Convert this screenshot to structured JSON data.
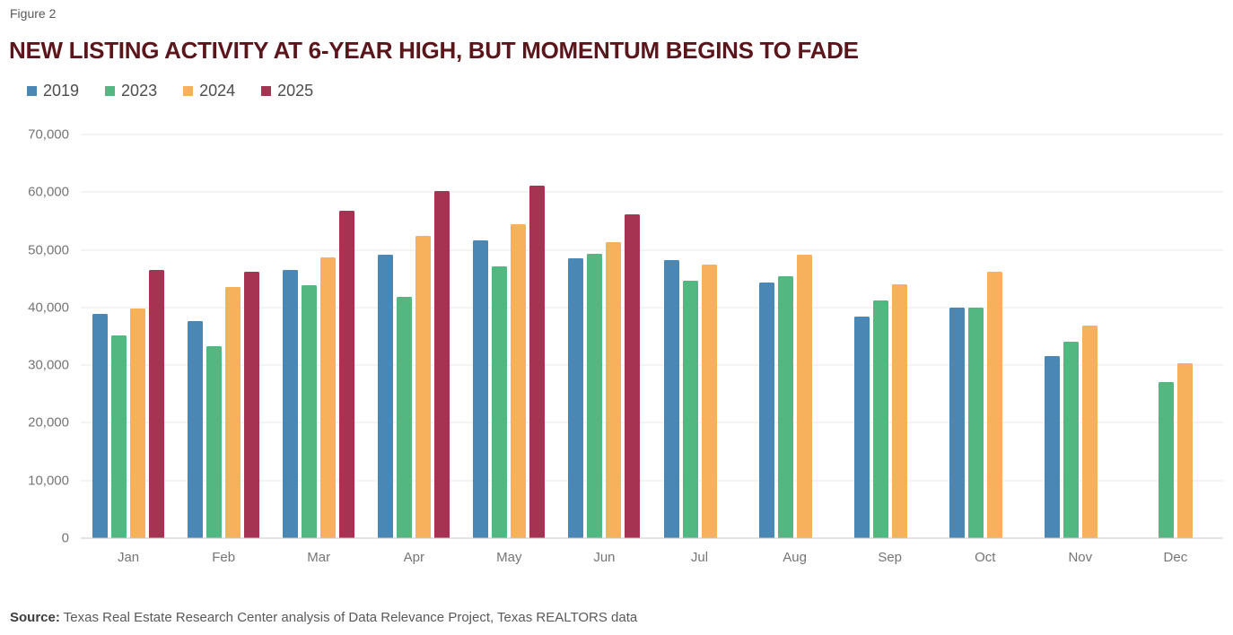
{
  "header": {
    "figure_label": "Figure 2",
    "title": "NEW LISTING ACTIVITY AT 6-YEAR HIGH, BUT MOMENTUM BEGINS TO FADE",
    "title_color": "#5b161c"
  },
  "source": {
    "label": "Source:",
    "text": "Texas Real Estate Research Center analysis of Data Relevance Project, Texas REALTORS data"
  },
  "chart_data": {
    "type": "bar",
    "title": "NEW LISTING ACTIVITY AT 6-YEAR HIGH, BUT MOMENTUM BEGINS TO FADE",
    "categories": [
      "Jan",
      "Feb",
      "Mar",
      "Apr",
      "May",
      "Jun",
      "Jul",
      "Aug",
      "Sep",
      "Oct",
      "Nov",
      "Dec"
    ],
    "series": [
      {
        "name": "2019",
        "color": "#4a87b4",
        "values": [
          38900,
          37700,
          46500,
          49100,
          51700,
          48600,
          48300,
          44300,
          38500,
          40000,
          31600,
          null
        ]
      },
      {
        "name": "2023",
        "color": "#53b781",
        "values": [
          35100,
          33300,
          43900,
          41800,
          47100,
          49300,
          44600,
          45400,
          41200,
          40000,
          34000,
          27100
        ]
      },
      {
        "name": "2024",
        "color": "#f7b05b",
        "values": [
          39900,
          43500,
          48700,
          52500,
          54500,
          51400,
          47500,
          49200,
          44000,
          46200,
          36800,
          30300
        ]
      },
      {
        "name": "2025",
        "color": "#a63352",
        "values": [
          46500,
          46200,
          56800,
          60200,
          61200,
          56200,
          null,
          null,
          null,
          null,
          null,
          null
        ]
      }
    ],
    "ylim": [
      0,
      70000
    ],
    "yticks": [
      {
        "value": 0,
        "label": "0"
      },
      {
        "value": 10000,
        "label": "10,000"
      },
      {
        "value": 20000,
        "label": "20,000"
      },
      {
        "value": 30000,
        "label": "30,000"
      },
      {
        "value": 40000,
        "label": "40,000"
      },
      {
        "value": 50000,
        "label": "50,000"
      },
      {
        "value": 60000,
        "label": "60,000"
      },
      {
        "value": 70000,
        "label": "70,000"
      }
    ],
    "xlabel": "",
    "ylabel": "",
    "grid": true,
    "legend_position": "top-left",
    "theme": {
      "axis_text_color": "#757575",
      "legend_text_color": "#4d4d4d",
      "grid_color": "#e9e9e9",
      "axis_line_color": "#c9c9c9",
      "source_text_color": "#595959"
    }
  }
}
